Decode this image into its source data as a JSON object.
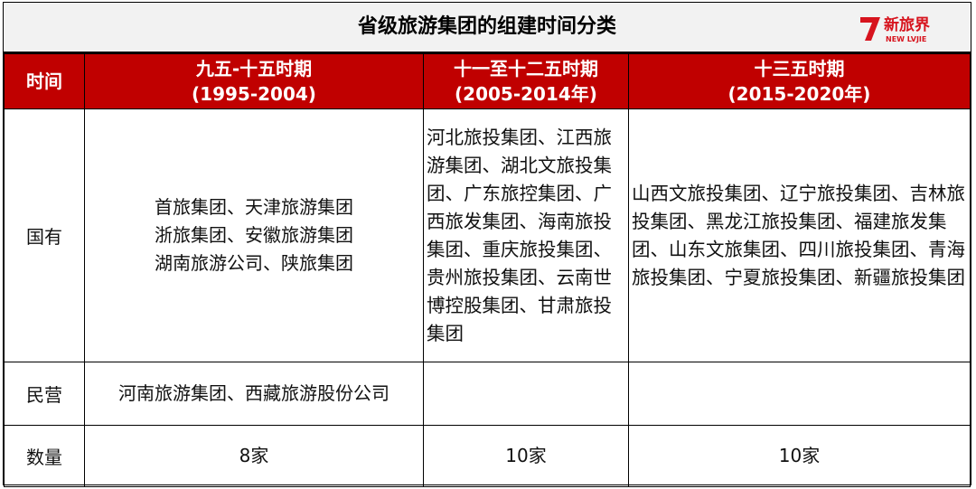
{
  "header": {
    "title": "省级旅游集团的组建时间分类",
    "logo": {
      "name": "新旅界",
      "subtitle": "NEW LVJIE"
    }
  },
  "table": {
    "corner": "时间",
    "columns": [
      {
        "period": "九五-十五时期",
        "years": "(1995-2004)"
      },
      {
        "period": "十一至十二五时期",
        "years": "(2005-2014年)"
      },
      {
        "period": "十三五时期",
        "years": "(2015-2020年)"
      }
    ],
    "rows": [
      {
        "label": "国有",
        "cells": [
          [
            "首旅集团、天津旅游集团",
            "浙旅集团、安徽旅游集团",
            "湖南旅游公司、陕旅集团"
          ],
          [
            "河北旅投集团、江西旅游集团、湖北文旅投集团、广东旅控集团、广西旅发集团、海南旅投集团、重庆旅投集团、贵州旅投集团、云南世博控股集团、甘肃旅投集团"
          ],
          [
            "山西文旅投集团、辽宁旅投集团、吉林旅投集团、黑龙江旅投集团、福建旅发集团、山东文旅集团、四川旅投集团、青海旅投集团、宁夏旅投集团、新疆旅投集团"
          ]
        ]
      },
      {
        "label": "民营",
        "cells": [
          [
            "河南旅游集团、西藏旅游股份公司"
          ]
        ]
      },
      {
        "label": "数量",
        "cells": [
          [
            "8家"
          ],
          [
            "10家"
          ],
          [
            "10家"
          ]
        ]
      }
    ]
  }
}
